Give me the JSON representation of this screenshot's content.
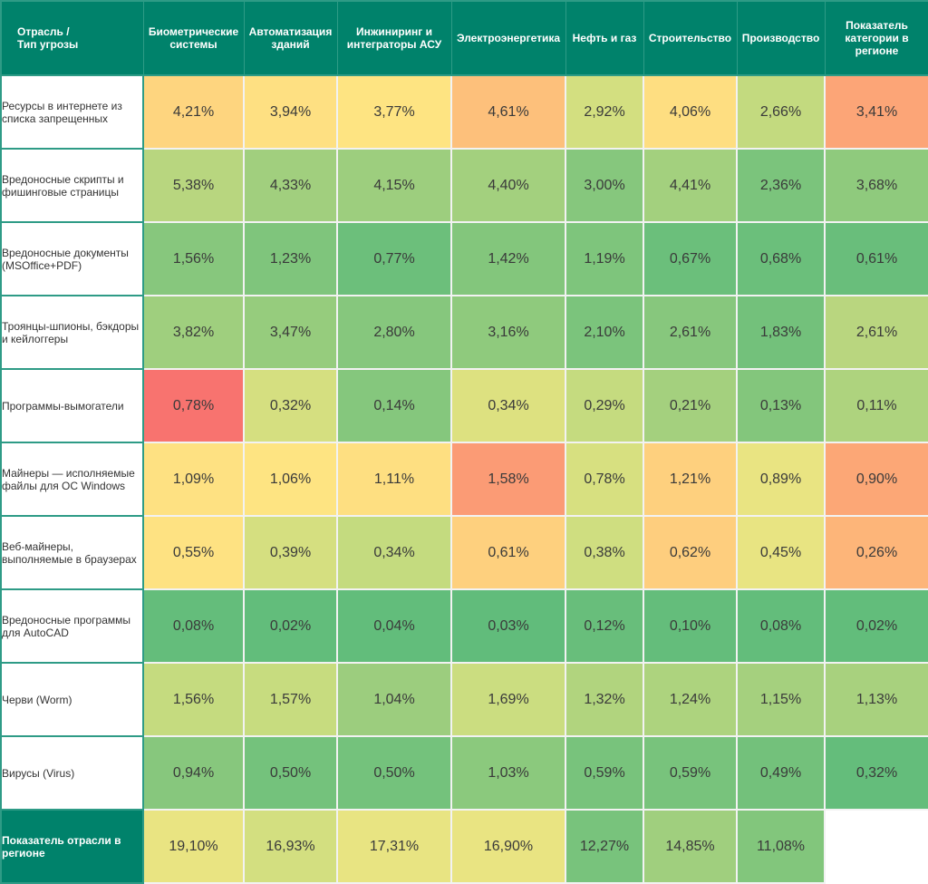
{
  "chart_data": {
    "type": "heatmap",
    "title": "",
    "corner_header": "Отрасль /\nТип угрозы",
    "columns": [
      "Биометрические системы",
      "Автоматизация зданий",
      "Инжиниринг и интеграторы АСУ",
      "Электроэнергетика",
      "Нефть и газ",
      "Строительство",
      "Производство",
      "Показатель категории в регионе"
    ],
    "rows": [
      {
        "label": "Ресурсы в интернете из списка запрещенных",
        "values": [
          "4,21%",
          "3,94%",
          "3,77%",
          "4,61%",
          "2,92%",
          "4,06%",
          "2,66%",
          "3,41%"
        ],
        "colors": [
          "#fed57f",
          "#fee082",
          "#fee482",
          "#fdc07b",
          "#d3df80",
          "#fede81",
          "#c3da7f",
          "#fca577"
        ]
      },
      {
        "label": "Вредоносные скрипты и фишинговые страницы",
        "values": [
          "5,38%",
          "4,33%",
          "4,15%",
          "4,40%",
          "3,00%",
          "4,41%",
          "2,36%",
          "3,68%"
        ],
        "colors": [
          "#b8d67f",
          "#a1cf7e",
          "#9dce7e",
          "#a3d07e",
          "#86c77d",
          "#a3d07e",
          "#7bc47c",
          "#8fca7d"
        ]
      },
      {
        "label": "Вредоносные документы (MSOffice+PDF)",
        "values": [
          "1,56%",
          "1,23%",
          "0,77%",
          "1,42%",
          "1,19%",
          "0,67%",
          "0,68%",
          "0,61%"
        ],
        "colors": [
          "#87c77d",
          "#7fc57c",
          "#6cbf7b",
          "#83c67c",
          "#7ec57c",
          "#6bbf7b",
          "#6bbf7b",
          "#69be7b"
        ]
      },
      {
        "label": "Троянцы-шпионы, бэкдоры и кейлоггеры",
        "values": [
          "3,82%",
          "3,47%",
          "2,80%",
          "3,16%",
          "2,10%",
          "2,61%",
          "1,83%",
          "2,61%"
        ],
        "colors": [
          "#9fcf7e",
          "#96cc7d",
          "#86c77d",
          "#8fca7d",
          "#7bc47c",
          "#87c77d",
          "#73c17b",
          "#b9d67f"
        ]
      },
      {
        "label": "Программы-вымогатели",
        "values": [
          "0,78%",
          "0,32%",
          "0,14%",
          "0,34%",
          "0,29%",
          "0,21%",
          "0,13%",
          "0,11%"
        ],
        "colors": [
          "#f8736f",
          "#d5df80",
          "#85c77d",
          "#dde180",
          "#c5db7f",
          "#a4d07e",
          "#83c67c",
          "#aed37e"
        ]
      },
      {
        "label": "Майнеры — исполняемые файлы для ОС Windows",
        "values": [
          "1,09%",
          "1,06%",
          "1,11%",
          "1,58%",
          "0,78%",
          "1,21%",
          "0,89%",
          "0,90%"
        ],
        "colors": [
          "#fee182",
          "#fee482",
          "#fedf81",
          "#fb9b75",
          "#d7e080",
          "#fed07e",
          "#e9e482",
          "#fca776"
        ]
      },
      {
        "label": "Веб-майнеры, выполняемые в браузерах",
        "values": [
          "0,55%",
          "0,39%",
          "0,34%",
          "0,61%",
          "0,38%",
          "0,62%",
          "0,45%",
          "0,26%"
        ],
        "colors": [
          "#fee282",
          "#d5df80",
          "#c4db7f",
          "#fed07e",
          "#cfde80",
          "#fece7e",
          "#e8e482",
          "#fdb579"
        ]
      },
      {
        "label": "Вредоносные программы для AutoCAD",
        "values": [
          "0,08%",
          "0,02%",
          "0,04%",
          "0,03%",
          "0,12%",
          "0,10%",
          "0,08%",
          "0,02%"
        ],
        "colors": [
          "#64bd7b",
          "#62bd7b",
          "#62bd7b",
          "#61bc7b",
          "#68be7b",
          "#64bd7b",
          "#63bd7b",
          "#62bd7b"
        ]
      },
      {
        "label": "Черви (Worm)",
        "values": [
          "1,56%",
          "1,57%",
          "1,04%",
          "1,69%",
          "1,32%",
          "1,24%",
          "1,15%",
          "1,13%"
        ],
        "colors": [
          "#c5db7f",
          "#c7dc7f",
          "#9ccd7e",
          "#cbdd80",
          "#b1d47e",
          "#add37e",
          "#a5d07e",
          "#a8d17e"
        ]
      },
      {
        "label": "Вирусы (Virus)",
        "values": [
          "0,94%",
          "0,50%",
          "0,50%",
          "1,03%",
          "0,59%",
          "0,59%",
          "0,49%",
          "0,32%"
        ],
        "colors": [
          "#87c77d",
          "#74c27c",
          "#74c27c",
          "#8bc97d",
          "#78c37c",
          "#78c37c",
          "#73c17b",
          "#64bd7b"
        ]
      }
    ],
    "total_row": {
      "label": "Показатель отрасли в регионе",
      "values": [
        "19,10%",
        "16,93%",
        "17,31%",
        "16,90%",
        "12,27%",
        "14,85%",
        "11,08%",
        ""
      ],
      "colors": [
        "#e9e482",
        "#d3df80",
        "#e8e482",
        "#e9e482",
        "#78c37c",
        "#a0cf7e",
        "#82c67c",
        "#ffffff"
      ]
    },
    "legend": "none",
    "color_scale": {
      "low": "#63be7b",
      "mid": "#ffe284",
      "high": "#f8696b"
    }
  },
  "colors": {
    "header_bg": "#00826b",
    "header_text": "#ffffff",
    "border": "#2e9b86"
  }
}
